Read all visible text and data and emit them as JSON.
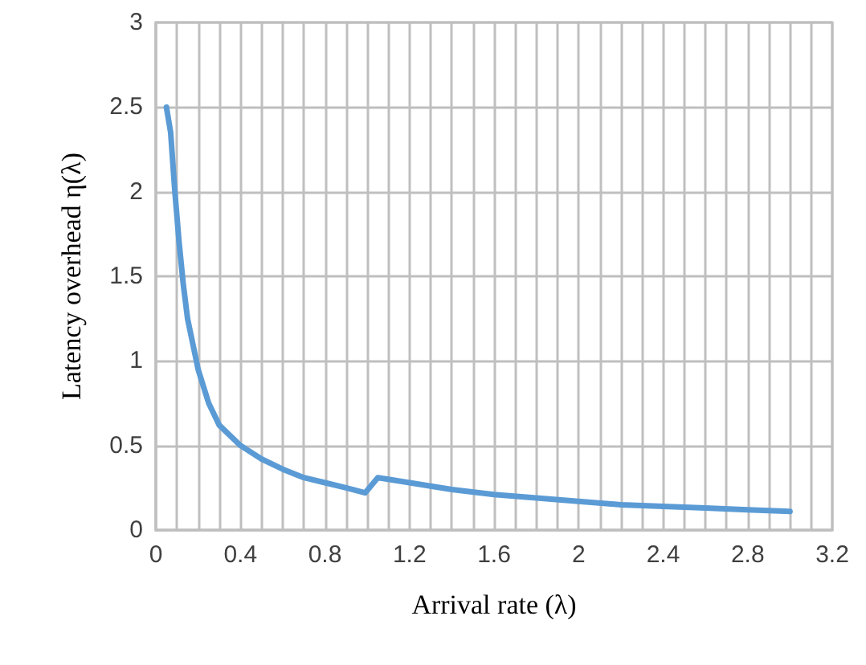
{
  "chart_data": {
    "type": "line",
    "xlabel": "Arrival rate (λ)",
    "ylabel": "Latency overhead η(λ)",
    "x": [
      0.05,
      0.07,
      0.09,
      0.11,
      0.13,
      0.15,
      0.2,
      0.25,
      0.3,
      0.4,
      0.5,
      0.6,
      0.7,
      0.8,
      0.9,
      0.99,
      1.05,
      1.1,
      1.2,
      1.4,
      1.6,
      1.8,
      2.0,
      2.2,
      2.4,
      2.6,
      2.8,
      3.0
    ],
    "series": [
      {
        "color": "#5b9bd5",
        "values": [
          2.5,
          2.35,
          2.0,
          1.7,
          1.45,
          1.25,
          0.95,
          0.75,
          0.62,
          0.5,
          0.42,
          0.36,
          0.31,
          0.28,
          0.25,
          0.22,
          0.31,
          0.3,
          0.28,
          0.24,
          0.21,
          0.19,
          0.17,
          0.15,
          0.14,
          0.13,
          0.12,
          0.11
        ]
      }
    ],
    "xlim": [
      0,
      3.2
    ],
    "xticks": [
      0,
      {
        "value": 0.1,
        "label": null
      },
      {
        "value": 0.2,
        "label": null
      },
      {
        "value": 0.3,
        "label": null
      },
      0.4,
      {
        "value": 0.5,
        "label": null
      },
      {
        "value": 0.6,
        "label": null
      },
      {
        "value": 0.7,
        "label": null
      },
      0.8,
      {
        "value": 0.9,
        "label": null
      },
      {
        "value": 1.0,
        "label": null
      },
      {
        "value": 1.1,
        "label": null
      },
      1.2,
      {
        "value": 1.3,
        "label": null
      },
      {
        "value": 1.4,
        "label": null
      },
      {
        "value": 1.5,
        "label": null
      },
      1.6,
      {
        "value": 1.7,
        "label": null
      },
      {
        "value": 1.8,
        "label": null
      },
      {
        "value": 1.9,
        "label": null
      },
      2,
      {
        "value": 2.1,
        "label": null
      },
      {
        "value": 2.2,
        "label": null
      },
      {
        "value": 2.3,
        "label": null
      },
      2.4,
      {
        "value": 2.5,
        "label": null
      },
      {
        "value": 2.6,
        "label": null
      },
      {
        "value": 2.7,
        "label": null
      },
      2.8,
      {
        "value": 2.9,
        "label": null
      },
      {
        "value": 3.0,
        "label": null
      },
      {
        "value": 3.1,
        "label": null
      },
      3.2
    ],
    "ylim": [
      0,
      3
    ],
    "yticks": [
      0,
      0.5,
      1,
      1.5,
      2,
      2.5,
      3
    ],
    "grid": true,
    "marker": "none",
    "line_style": "solid"
  }
}
